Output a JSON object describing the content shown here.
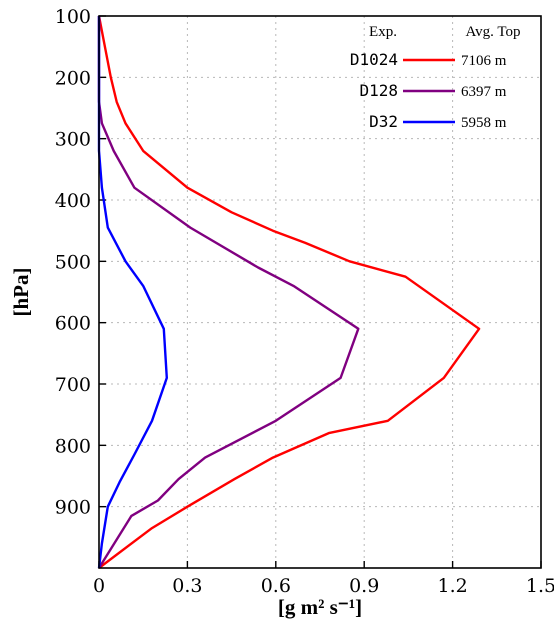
{
  "chart_data": {
    "type": "line",
    "xlabel": "[g m² s⁻¹]",
    "ylabel": "[hPa]",
    "xlim": [
      0,
      1.5
    ],
    "ylim": [
      100,
      1000
    ],
    "y_inverted": true,
    "grid": true,
    "xticks": [
      "0",
      "0.3",
      "0.6",
      "0.9",
      "1.2",
      "1.5"
    ],
    "yticks": [
      "100",
      "200",
      "300",
      "400",
      "500",
      "600",
      "700",
      "800",
      "900"
    ],
    "legend": {
      "position": "top-right",
      "header_left": "Exp.",
      "header_right": "Avg. Top"
    },
    "series": [
      {
        "name": "D1024",
        "avg_top": "7106 m",
        "color": "#ff0000",
        "points": [
          [
            0.0,
            100
          ],
          [
            0.02,
            150
          ],
          [
            0.04,
            200
          ],
          [
            0.06,
            240
          ],
          [
            0.09,
            275
          ],
          [
            0.15,
            320
          ],
          [
            0.3,
            380
          ],
          [
            0.45,
            420
          ],
          [
            0.59,
            450
          ],
          [
            0.7,
            470
          ],
          [
            0.85,
            500
          ],
          [
            1.04,
            525
          ],
          [
            1.29,
            610
          ],
          [
            1.17,
            690
          ],
          [
            0.98,
            760
          ],
          [
            0.78,
            780
          ],
          [
            0.59,
            820
          ],
          [
            0.46,
            855
          ],
          [
            0.3,
            900
          ],
          [
            0.18,
            935
          ],
          [
            0.0,
            1000
          ]
        ]
      },
      {
        "name": "D128",
        "avg_top": "6397 m",
        "color": "#800080",
        "points": [
          [
            0.0,
            100
          ],
          [
            0.0,
            200
          ],
          [
            0.0,
            240
          ],
          [
            0.01,
            275
          ],
          [
            0.05,
            320
          ],
          [
            0.12,
            380
          ],
          [
            0.31,
            445
          ],
          [
            0.54,
            510
          ],
          [
            0.66,
            540
          ],
          [
            0.88,
            610
          ],
          [
            0.82,
            690
          ],
          [
            0.6,
            760
          ],
          [
            0.36,
            820
          ],
          [
            0.27,
            855
          ],
          [
            0.2,
            890
          ],
          [
            0.11,
            915
          ],
          [
            0.0,
            1000
          ]
        ]
      },
      {
        "name": "D32",
        "avg_top": "5958 m",
        "color": "#0000ff",
        "points": [
          [
            0.0,
            100
          ],
          [
            0.0,
            200
          ],
          [
            0.0,
            275
          ],
          [
            0.0,
            320
          ],
          [
            0.01,
            380
          ],
          [
            0.03,
            445
          ],
          [
            0.09,
            500
          ],
          [
            0.15,
            540
          ],
          [
            0.22,
            610
          ],
          [
            0.23,
            690
          ],
          [
            0.18,
            760
          ],
          [
            0.12,
            815
          ],
          [
            0.07,
            860
          ],
          [
            0.03,
            900
          ],
          [
            0.01,
            960
          ],
          [
            0.0,
            1000
          ]
        ]
      }
    ]
  }
}
